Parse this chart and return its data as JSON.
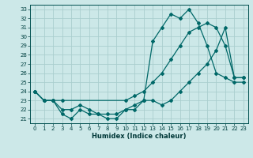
{
  "xlabel": "Humidex (Indice chaleur)",
  "ylabel": "",
  "bg_color": "#cce8e8",
  "line_color": "#006868",
  "grid_color": "#aacece",
  "xlim": [
    -0.5,
    23.5
  ],
  "ylim": [
    20.5,
    33.5
  ],
  "xticks": [
    0,
    1,
    2,
    3,
    4,
    5,
    6,
    7,
    8,
    9,
    10,
    11,
    12,
    13,
    14,
    15,
    16,
    17,
    18,
    19,
    20,
    21,
    22,
    23
  ],
  "yticks": [
    21,
    22,
    23,
    24,
    25,
    26,
    27,
    28,
    29,
    30,
    31,
    32,
    33
  ],
  "line1_x": [
    0,
    1,
    2,
    3,
    4,
    5,
    6,
    7,
    8,
    9,
    10,
    11,
    12,
    13,
    14,
    15,
    16,
    17,
    18,
    19,
    20,
    21,
    22,
    23
  ],
  "line1_y": [
    24,
    23,
    23,
    21.5,
    21,
    22,
    21.5,
    21.5,
    21,
    21,
    22,
    22,
    23,
    29.5,
    31,
    32.5,
    32,
    33,
    31.5,
    29,
    26,
    25.5,
    25,
    25
  ],
  "line2_x": [
    0,
    1,
    2,
    3,
    4,
    5,
    6,
    7,
    8,
    9,
    10,
    11,
    12,
    13,
    14,
    15,
    16,
    17,
    18,
    19,
    20,
    21,
    22,
    23
  ],
  "line2_y": [
    24,
    23,
    23,
    22,
    22,
    22.5,
    22,
    21.5,
    21.5,
    21.5,
    22,
    22.5,
    23,
    23,
    22.5,
    23,
    24,
    25,
    26,
    27,
    28.5,
    31,
    25.5,
    25.5
  ],
  "line3_x": [
    0,
    1,
    2,
    3,
    10,
    11,
    12,
    13,
    14,
    15,
    16,
    17,
    18,
    19,
    20,
    21,
    22,
    23
  ],
  "line3_y": [
    24,
    23,
    23,
    23,
    23,
    23.5,
    24,
    25,
    26,
    27.5,
    29,
    30.5,
    31,
    31.5,
    31,
    29,
    25.5,
    25.5
  ]
}
